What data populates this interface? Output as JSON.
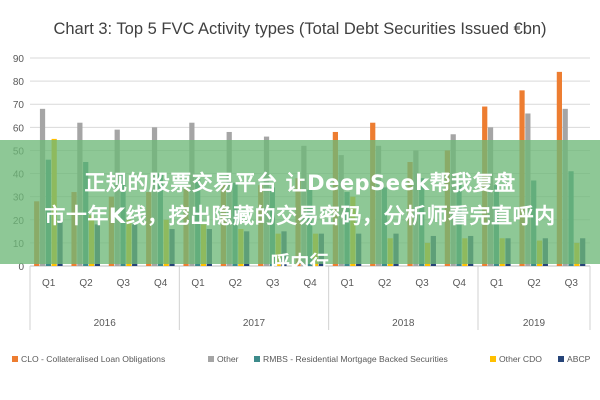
{
  "chart_data": {
    "type": "bar",
    "title": "Chart 3: Top 5 FVC Activity types (Total Debt Securities Issued €bn)",
    "xlabel": "",
    "ylabel": "",
    "ylim": [
      0,
      90
    ],
    "yticks": [
      0,
      10,
      20,
      30,
      40,
      50,
      60,
      70,
      80,
      90
    ],
    "grid": true,
    "legend_position": "bottom",
    "categories": [
      "Q1",
      "Q2",
      "Q3",
      "Q4",
      "Q1",
      "Q2",
      "Q3",
      "Q4",
      "Q1",
      "Q2",
      "Q3",
      "Q4",
      "Q1",
      "Q2",
      "Q3"
    ],
    "year_groups": [
      {
        "label": "2016",
        "count": 4
      },
      {
        "label": "2017",
        "count": 4
      },
      {
        "label": "2018",
        "count": 4
      },
      {
        "label": "2019",
        "count": 3
      }
    ],
    "series": [
      {
        "name": "CLO - Collateralised Loan Obligations",
        "color": "#ed7d31",
        "values": [
          28,
          32,
          30,
          32,
          34,
          36,
          35,
          38,
          58,
          62,
          45,
          50,
          69,
          76,
          84
        ]
      },
      {
        "name": "Other",
        "color": "#a5a5a5",
        "values": [
          68,
          62,
          59,
          60,
          62,
          58,
          56,
          52,
          48,
          52,
          50,
          57,
          60,
          66,
          68
        ]
      },
      {
        "name": "RMBS - Residential Mortgage Backed Securities",
        "color": "#3d8b8b",
        "values": [
          46,
          45,
          40,
          40,
          38,
          36,
          34,
          33,
          32,
          34,
          38,
          36,
          35,
          37,
          41
        ]
      },
      {
        "name": "Other CDO",
        "color": "#ffc000",
        "values": [
          55,
          22,
          20,
          20,
          18,
          16,
          14,
          14,
          30,
          12,
          10,
          12,
          12,
          11,
          10
        ]
      },
      {
        "name": "ABCP",
        "color": "#264478",
        "values": [
          20,
          18,
          18,
          16,
          16,
          15,
          15,
          14,
          14,
          14,
          13,
          13,
          12,
          12,
          12
        ]
      }
    ]
  },
  "overlay": {
    "line1": "正规的股票交易平台 让DeepSeek帮我复盘",
    "line2": "市十年K线，挖出隐藏的交易密码，分析师看完直呼内",
    "line3": "呼内行"
  }
}
